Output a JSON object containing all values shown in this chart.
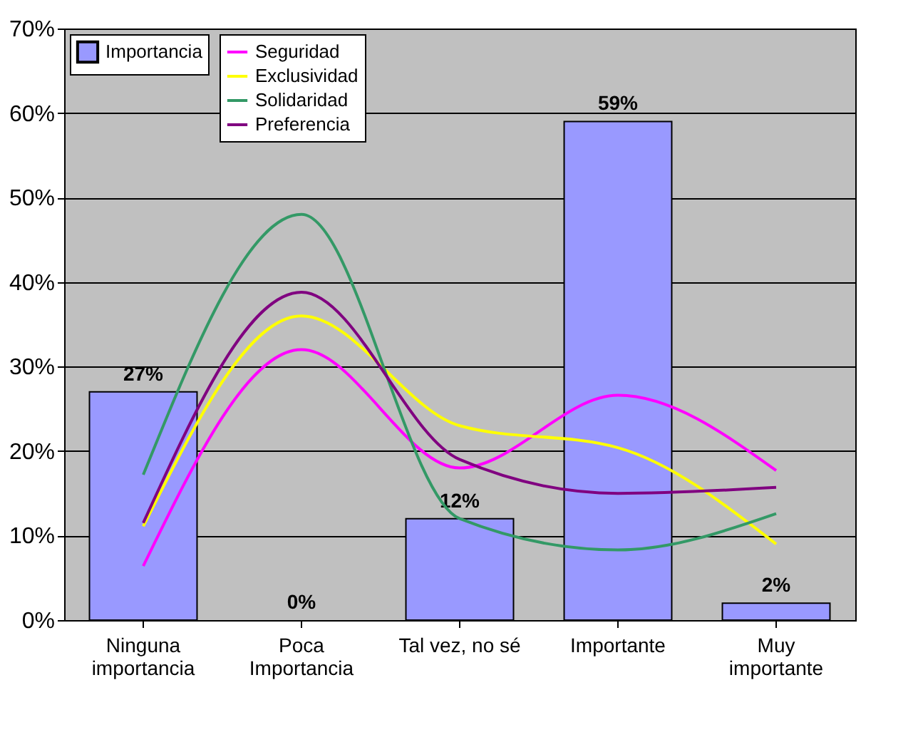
{
  "chart_data": {
    "type": "bar",
    "categories": [
      "Ninguna\nimportancia",
      "Poca\nImportancia",
      "Tal vez, no sé",
      "Importante",
      "Muy\nimportante"
    ],
    "series": [
      {
        "name": "Importancia",
        "color": "#9999ff",
        "values": [
          27,
          0,
          12,
          59,
          2
        ],
        "value_labels": [
          "27%",
          "0%",
          "12%",
          "59%",
          "2%"
        ]
      },
      {
        "name": "Seguridad",
        "type": "line",
        "color": "#ff00ff",
        "values": [
          6.4,
          32,
          18,
          26.6,
          17.7
        ]
      },
      {
        "name": "Exclusividad",
        "type": "line",
        "color": "#ffff00",
        "values": [
          11.1,
          36,
          23,
          20.4,
          9
        ]
      },
      {
        "name": "Solidaridad",
        "type": "line",
        "color": "#339966",
        "values": [
          17.2,
          48,
          12,
          8.3,
          12.6
        ]
      },
      {
        "name": "Preferencia",
        "type": "line",
        "color": "#800080",
        "values": [
          11.5,
          38.8,
          19,
          15,
          15.7
        ]
      }
    ],
    "ylim": [
      0,
      70
    ],
    "yticks": [
      {
        "value": 0,
        "label": "0%"
      },
      {
        "value": 10,
        "label": "10%"
      },
      {
        "value": 20,
        "label": "20%"
      },
      {
        "value": 30,
        "label": "30%"
      },
      {
        "value": 40,
        "label": "40%"
      },
      {
        "value": 50,
        "label": "50%"
      },
      {
        "value": 60,
        "label": "60%"
      },
      {
        "value": 70,
        "label": "70%"
      }
    ],
    "grid": "y",
    "legend": "top left",
    "marker": "none",
    "line_style": "solid"
  }
}
